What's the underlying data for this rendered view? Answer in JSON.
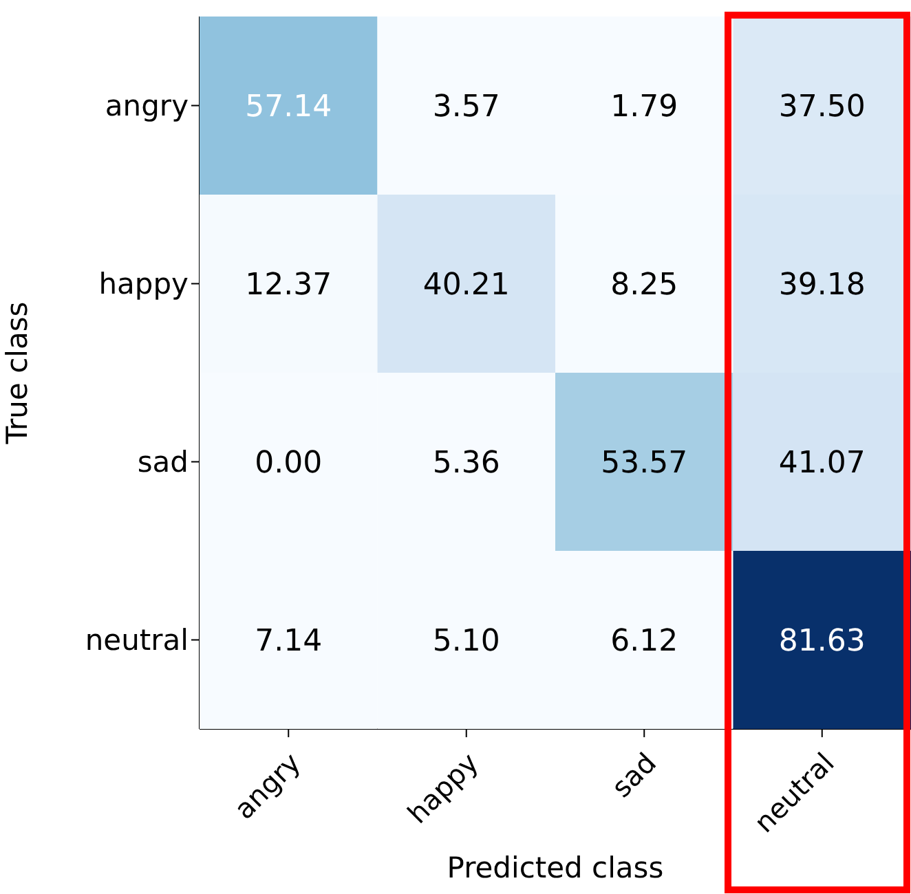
{
  "chart_data": {
    "type": "heatmap",
    "xlabel": "Predicted class",
    "ylabel": "True class",
    "categories": [
      "angry",
      "happy",
      "sad",
      "neutral"
    ],
    "y_categories": [
      "angry",
      "happy",
      "sad",
      "neutral"
    ],
    "cells": [
      [
        57.14,
        3.57,
        1.79,
        37.5
      ],
      [
        12.37,
        40.21,
        8.25,
        39.18
      ],
      [
        0.0,
        5.36,
        53.57,
        41.07
      ],
      [
        7.14,
        5.1,
        6.12,
        81.63
      ]
    ],
    "cell_labels": [
      [
        "57.14",
        "3.57",
        "1.79",
        "37.50"
      ],
      [
        "12.37",
        "40.21",
        "8.25",
        "39.18"
      ],
      [
        "0.00",
        "5.36",
        "53.57",
        "41.07"
      ],
      [
        "7.14",
        "5.10",
        "6.12",
        "81.63"
      ]
    ],
    "data_labels": true
  }
}
